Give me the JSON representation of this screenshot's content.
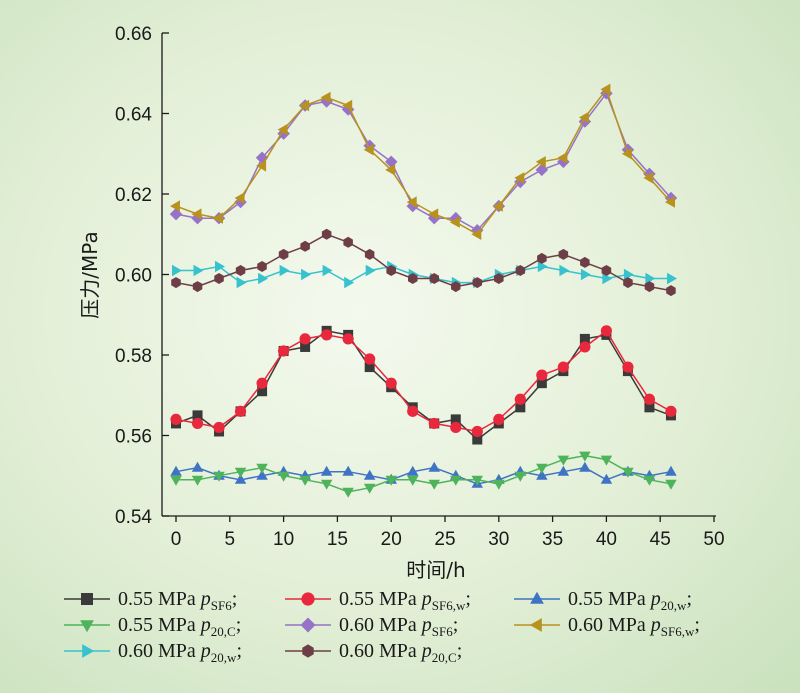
{
  "chart_data": {
    "type": "line",
    "xlabel": "时间/h",
    "ylabel": "压力/MPa",
    "xlim": [
      0,
      50
    ],
    "ylim": [
      0.54,
      0.66
    ],
    "xticks": [
      "0",
      "5",
      "10",
      "15",
      "20",
      "25",
      "30",
      "35",
      "40",
      "45",
      "50"
    ],
    "yticks": [
      "0.54",
      "0.56",
      "0.58",
      "0.60",
      "0.62",
      "0.64",
      "0.66"
    ],
    "grid": false,
    "legend_position": "bottom",
    "x": [
      0,
      2,
      4,
      6,
      8,
      10,
      12,
      14,
      16,
      18,
      20,
      22,
      24,
      26,
      28,
      30,
      32,
      34,
      36,
      38,
      40,
      42,
      44,
      46
    ],
    "series": [
      {
        "name": "0.55 MPa pSF6",
        "legend": {
          "prefix": "0.55 MPa ",
          "var": "p",
          "sub": "SF6",
          "suffix": ";"
        },
        "marker": "square",
        "color": "#3a3a3a",
        "values": [
          0.563,
          0.565,
          0.561,
          0.566,
          0.571,
          0.581,
          0.582,
          0.586,
          0.585,
          0.577,
          0.572,
          0.567,
          0.563,
          0.564,
          0.559,
          0.563,
          0.567,
          0.573,
          0.576,
          0.584,
          0.585,
          0.576,
          0.567,
          0.565
        ]
      },
      {
        "name": "0.55 MPa pSF6,w",
        "legend": {
          "prefix": "0.55 MPa ",
          "var": "p",
          "sub": "SF6,w",
          "suffix": ";"
        },
        "marker": "circle",
        "color": "#e8283c",
        "values": [
          0.564,
          0.563,
          0.562,
          0.566,
          0.573,
          0.581,
          0.584,
          0.585,
          0.584,
          0.579,
          0.573,
          0.566,
          0.563,
          0.562,
          0.561,
          0.564,
          0.569,
          0.575,
          0.577,
          0.582,
          0.586,
          0.577,
          0.569,
          0.566
        ]
      },
      {
        "name": "0.55 MPa p20,w",
        "legend": {
          "prefix": "0.55 MPa ",
          "var": "p",
          "sub": "20,w",
          "suffix": ";"
        },
        "marker": "triangle-up",
        "color": "#3f74c4",
        "values": [
          0.551,
          0.552,
          0.55,
          0.549,
          0.55,
          0.551,
          0.55,
          0.551,
          0.551,
          0.55,
          0.549,
          0.551,
          0.552,
          0.55,
          0.548,
          0.549,
          0.551,
          0.55,
          0.551,
          0.552,
          0.549,
          0.551,
          0.55,
          0.551
        ]
      },
      {
        "name": "0.55 MPa p20,C",
        "legend": {
          "prefix": "0.55 MPa ",
          "var": "p",
          "sub": "20,C",
          "suffix": ";"
        },
        "marker": "triangle-down",
        "color": "#4eb35b",
        "values": [
          0.549,
          0.549,
          0.55,
          0.551,
          0.552,
          0.55,
          0.549,
          0.548,
          0.546,
          0.547,
          0.549,
          0.549,
          0.548,
          0.549,
          0.549,
          0.548,
          0.55,
          0.552,
          0.554,
          0.555,
          0.554,
          0.551,
          0.549,
          0.548
        ]
      },
      {
        "name": "0.60 MPa pSF6",
        "legend": {
          "prefix": "0.60 MPa ",
          "var": "p",
          "sub": "SF6",
          "suffix": ";"
        },
        "marker": "diamond",
        "color": "#9672c8",
        "values": [
          0.615,
          0.614,
          0.614,
          0.618,
          0.629,
          0.635,
          0.642,
          0.643,
          0.641,
          0.632,
          0.628,
          0.617,
          0.614,
          0.614,
          0.611,
          0.617,
          0.623,
          0.626,
          0.628,
          0.638,
          0.645,
          0.631,
          0.625,
          0.619
        ]
      },
      {
        "name": "0.60 MPa pSF6,w",
        "legend": {
          "prefix": "0.60 MPa ",
          "var": "p",
          "sub": "SF6,w",
          "suffix": ";"
        },
        "marker": "triangle-left",
        "color": "#b8921e",
        "values": [
          0.617,
          0.615,
          0.614,
          0.619,
          0.627,
          0.636,
          0.642,
          0.644,
          0.642,
          0.631,
          0.626,
          0.618,
          0.615,
          0.613,
          0.61,
          0.617,
          0.624,
          0.628,
          0.629,
          0.639,
          0.646,
          0.63,
          0.624,
          0.618
        ]
      },
      {
        "name": "0.60 MPa p20,w",
        "legend": {
          "prefix": "0.60 MPa ",
          "var": "p",
          "sub": "20,w",
          "suffix": ";"
        },
        "marker": "triangle-right",
        "color": "#38c2cd",
        "values": [
          0.601,
          0.601,
          0.602,
          0.598,
          0.599,
          0.601,
          0.6,
          0.601,
          0.598,
          0.601,
          0.602,
          0.6,
          0.599,
          0.598,
          0.598,
          0.6,
          0.601,
          0.602,
          0.601,
          0.6,
          0.599,
          0.6,
          0.599,
          0.599
        ]
      },
      {
        "name": "0.60 MPa p20,C",
        "legend": {
          "prefix": "0.60 MPa ",
          "var": "p",
          "sub": "20,C",
          "suffix": ";"
        },
        "marker": "hexagon",
        "color": "#6e3e47",
        "values": [
          0.598,
          0.597,
          0.599,
          0.601,
          0.602,
          0.605,
          0.607,
          0.61,
          0.608,
          0.605,
          0.601,
          0.599,
          0.599,
          0.597,
          0.598,
          0.599,
          0.601,
          0.604,
          0.605,
          0.603,
          0.601,
          0.598,
          0.597,
          0.596
        ]
      }
    ]
  }
}
